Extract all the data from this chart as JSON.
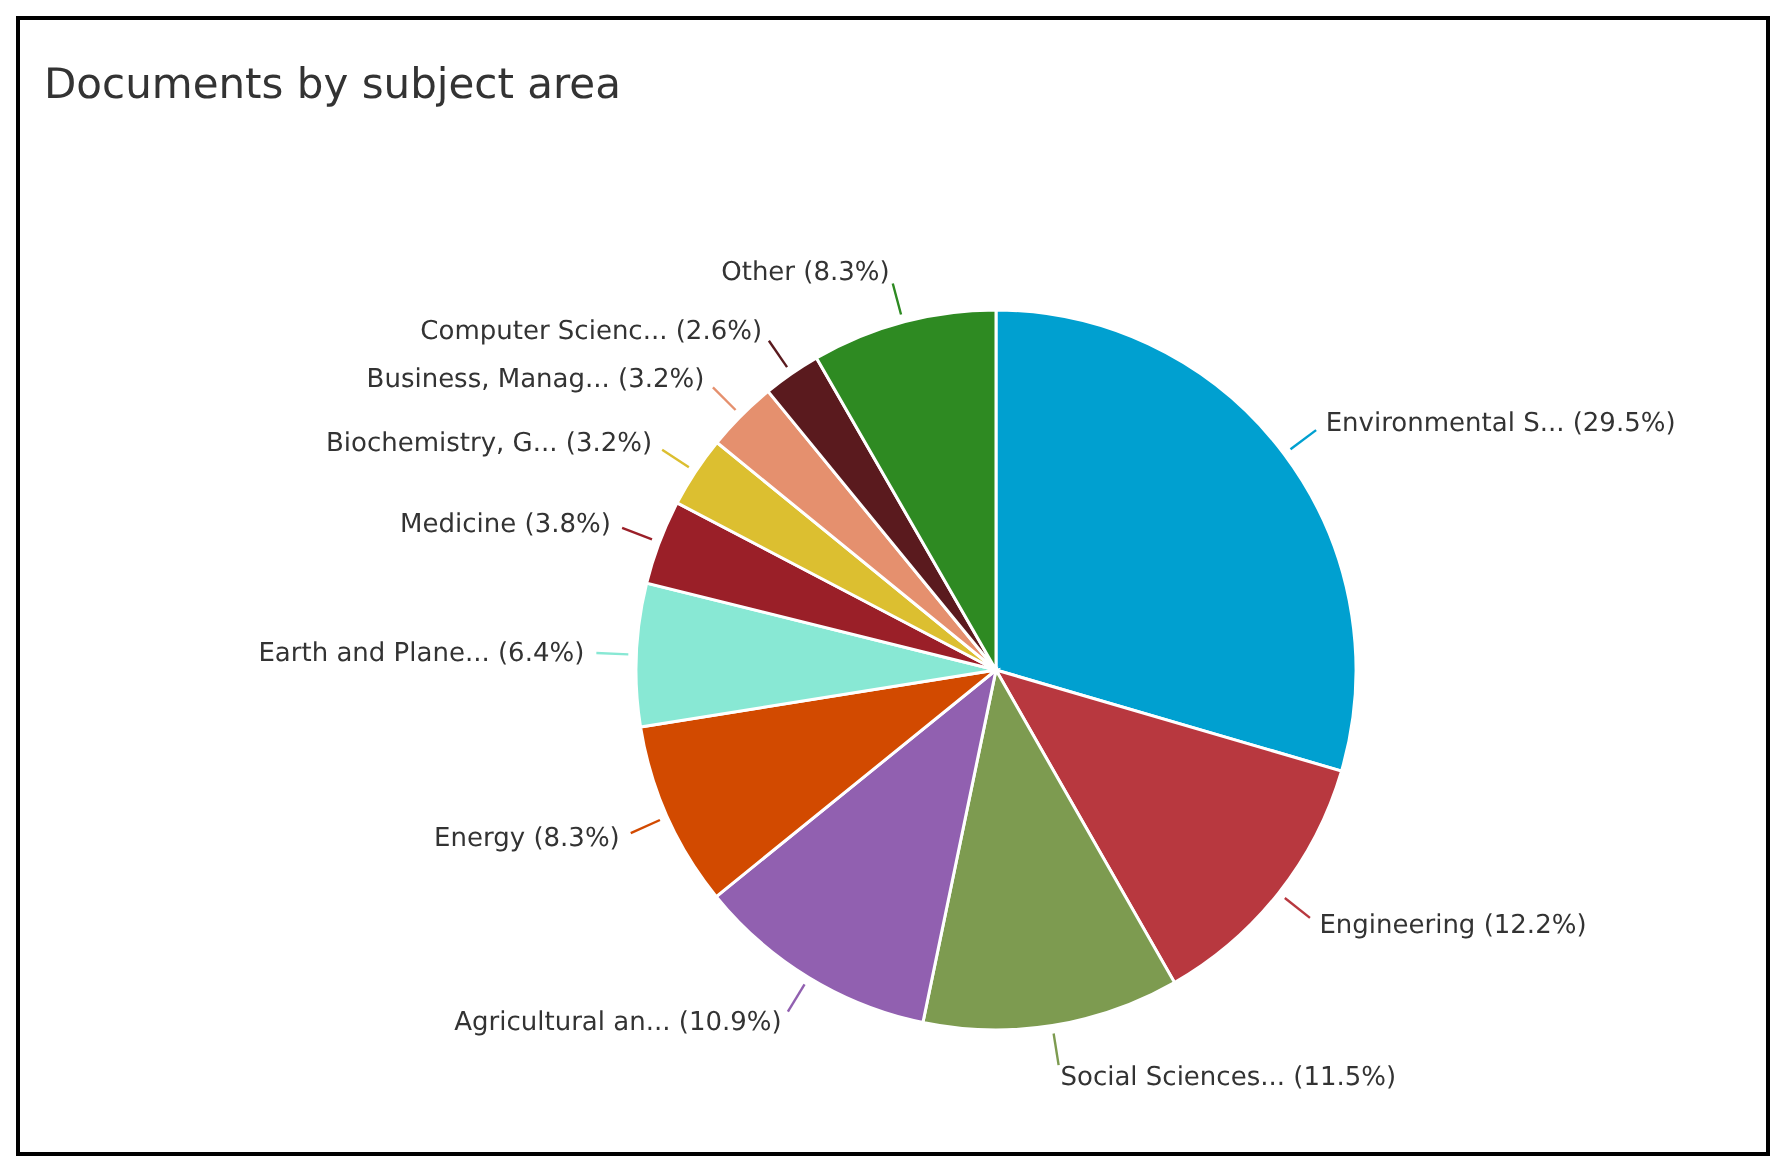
{
  "chart_data": {
    "type": "pie",
    "title": "Documents by subject area",
    "categories": [
      "Environmental S...",
      "Engineering",
      "Social Sciences...",
      "Agricultural an...",
      "Energy",
      "Earth and Plane...",
      "Medicine",
      "Biochemistry, G...",
      "Business, Manag...",
      "Computer Scienc...",
      "Other"
    ],
    "values": [
      29.5,
      12.2,
      11.5,
      10.9,
      8.3,
      6.4,
      3.8,
      3.2,
      3.2,
      2.6,
      8.3
    ],
    "value_labels": [
      "(29.5%)",
      "(12.2%)",
      "(11.5%)",
      "(10.9%)",
      "(8.3%)",
      "(6.4%)",
      "(3.8%)",
      "(3.2%)",
      "(3.2%)",
      "(2.6%)",
      "(8.3%)"
    ],
    "colors": [
      "#00a0d0",
      "#b8383f",
      "#7d9b50",
      "#9160b0",
      "#d24a00",
      "#88e8d4",
      "#9a1f28",
      "#dcbf30",
      "#e5906e",
      "#5a1a1e",
      "#2e8a22"
    ],
    "legend": false
  }
}
